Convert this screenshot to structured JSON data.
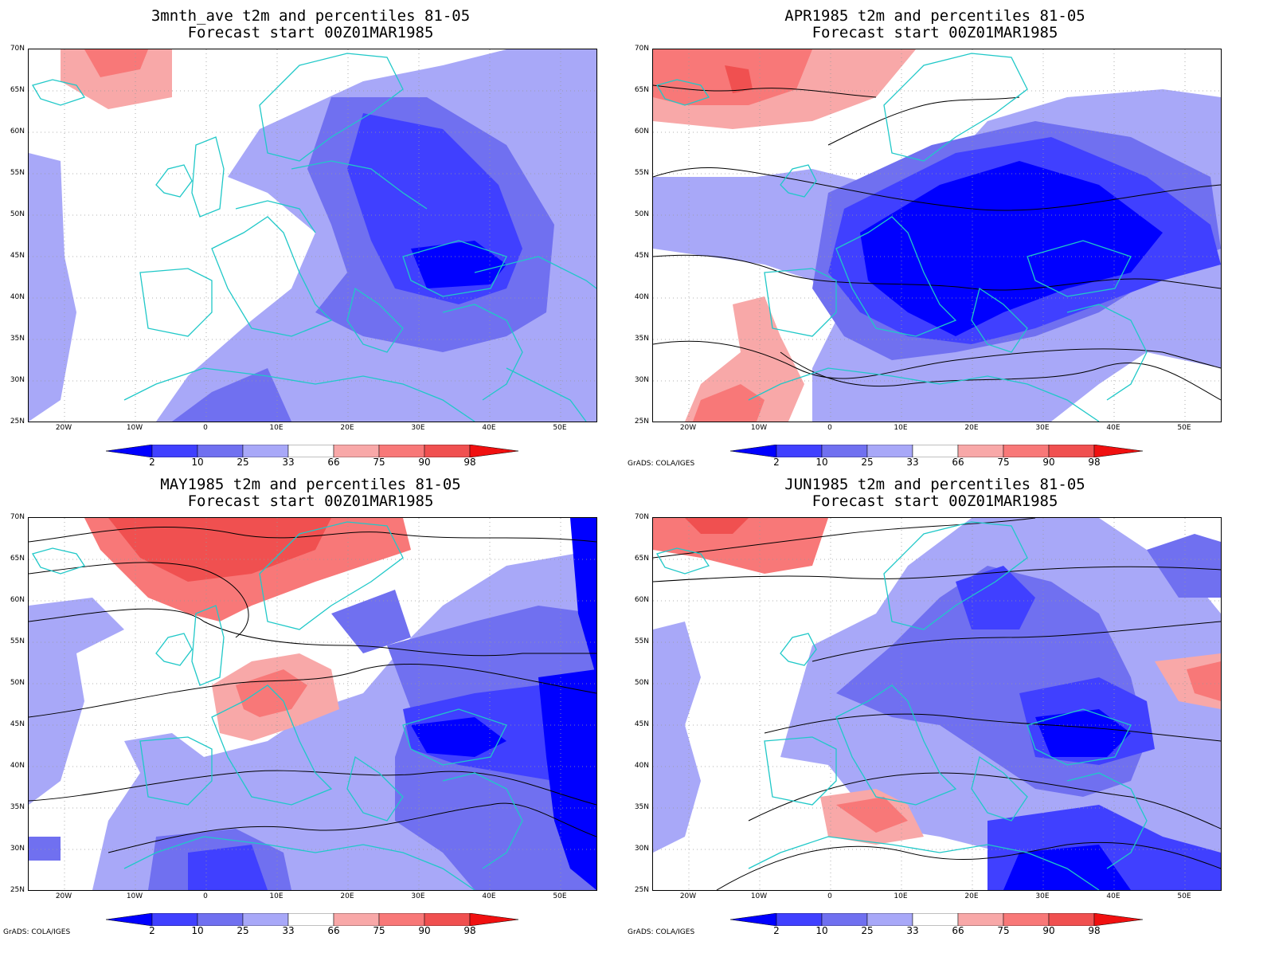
{
  "panels": [
    {
      "id": "p1",
      "title_line1": "3mnth_ave t2m and percentiles 81-05",
      "title_line2": "Forecast start 00Z01MAR1985"
    },
    {
      "id": "p2",
      "title_line1": "APR1985 t2m and percentiles 81-05",
      "title_line2": "Forecast start 00Z01MAR1985"
    },
    {
      "id": "p3",
      "title_line1": "MAY1985 t2m and percentiles 81-05",
      "title_line2": "Forecast start 00Z01MAR1985"
    },
    {
      "id": "p4",
      "title_line1": "JUN1985 t2m and percentiles 81-05",
      "title_line2": "Forecast start 00Z01MAR1985"
    }
  ],
  "lat_labels": [
    "70N",
    "65N",
    "60N",
    "55N",
    "50N",
    "45N",
    "40N",
    "35N",
    "30N",
    "25N"
  ],
  "lon_labels": [
    "20W",
    "10W",
    "0",
    "10E",
    "20E",
    "30E",
    "40E",
    "50E"
  ],
  "colorbar": {
    "labels": [
      "2",
      "10",
      "25",
      "33",
      "66",
      "75",
      "90",
      "98"
    ],
    "colors": [
      "#0000ff",
      "#4040ff",
      "#7070f0",
      "#a8a8f8",
      "#ffffff",
      "#f8a8a8",
      "#f87878",
      "#f05050",
      "#f01010"
    ]
  },
  "credit": "GrADS: COLA/IGES",
  "colors": {
    "coast": "#20c8c8",
    "contour": "#000000",
    "grid": "#999999"
  }
}
